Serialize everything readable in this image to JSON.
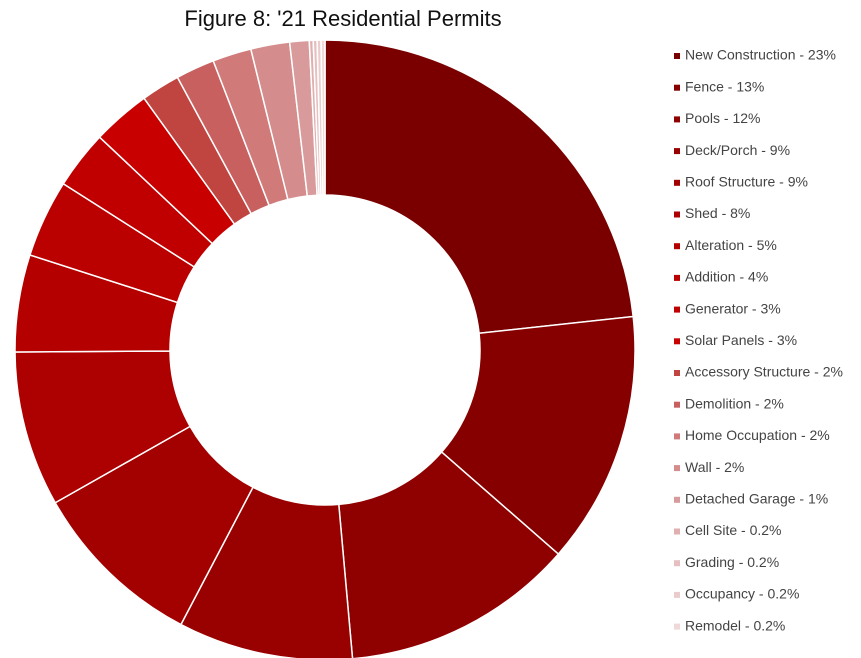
{
  "chart_data": {
    "type": "donut",
    "title": "Figure 8: '21 Residential Permits",
    "categories": [
      "New Construction - 23%",
      "Fence - 13%",
      "Pools - 12%",
      "Deck/Porch - 9%",
      "Roof Structure - 9%",
      "Shed - 8%",
      "Alteration - 5%",
      "Addition - 4%",
      "Generator - 3%",
      "Solar Panels - 3%",
      "Accessory Structure - 2%",
      "Demolition - 2%",
      "Home Occupation - 2%",
      "Wall - 2%",
      "Detached Garage - 1%",
      "Cell Site - 0.2%",
      "Grading - 0.2%",
      "Occupancy - 0.2%",
      "Remodel - 0.2%"
    ],
    "values": [
      23,
      13,
      12,
      9,
      9,
      8,
      5,
      4,
      3,
      3,
      2,
      2,
      2,
      2,
      1,
      0.2,
      0.2,
      0.2,
      0.2
    ],
    "colors": [
      "#7a0000",
      "#860000",
      "#8f0000",
      "#990000",
      "#a30000",
      "#ad0000",
      "#b50000",
      "#bb0000",
      "#c00000",
      "#c80000",
      "#c0443f",
      "#c96060",
      "#d07a7a",
      "#d48c8c",
      "#d89a9a",
      "#e0b0b0",
      "#e6c0c0",
      "#ebcccc",
      "#f0d8d8"
    ],
    "legend": "right"
  }
}
